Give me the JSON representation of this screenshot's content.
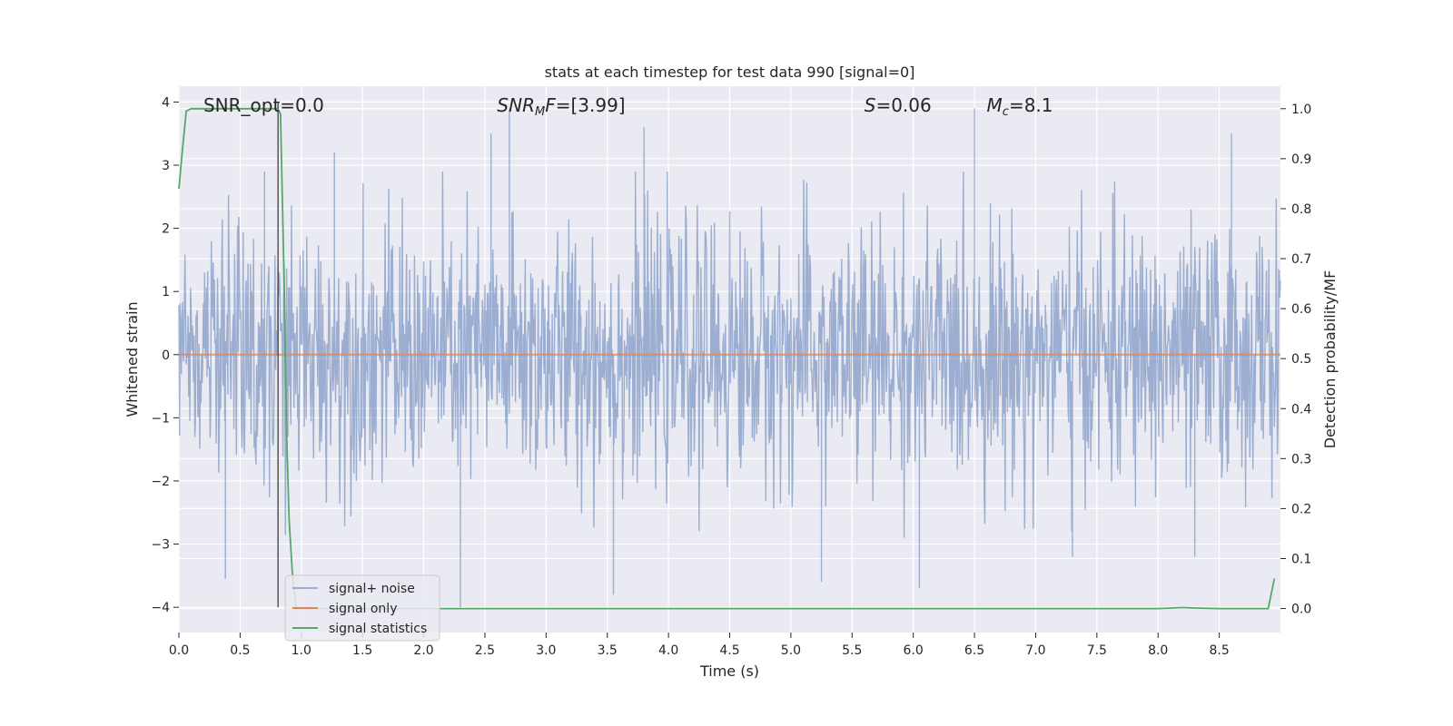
{
  "chart_data": {
    "type": "line",
    "title": "stats at each timestep for test data 990 [signal=0]",
    "xlabel": "Time (s)",
    "ylabel": "Whitened strain",
    "y2label": "Detection probability/MF",
    "xlim": [
      0.0,
      9.0
    ],
    "ylim": [
      -4.4,
      4.25
    ],
    "y2lim": [
      -0.048,
      1.045
    ],
    "x_ticks": [
      "0.0",
      "0.5",
      "1.0",
      "1.5",
      "2.0",
      "2.5",
      "3.0",
      "3.5",
      "4.0",
      "4.5",
      "5.0",
      "5.5",
      "6.0",
      "6.5",
      "7.0",
      "7.5",
      "8.0",
      "8.5"
    ],
    "y_ticks": [
      "4",
      "3",
      "2",
      "1",
      "0",
      "−1",
      "−2",
      "−3",
      "−4"
    ],
    "y2_ticks": [
      "1.0",
      "0.9",
      "0.8",
      "0.7",
      "0.6",
      "0.5",
      "0.4",
      "0.3",
      "0.2",
      "0.1",
      "0.0"
    ],
    "annotations": [
      {
        "text": "SNR_opt=0.0",
        "x": 0.2,
        "y": 3.95
      },
      {
        "text": "SNR_MF=[3.99]",
        "x": 2.6,
        "y": 3.95
      },
      {
        "text": "S=0.06",
        "x": 5.6,
        "y": 3.95
      },
      {
        "text": "M_c=8.1",
        "x": 6.6,
        "y": 3.95
      }
    ],
    "vline_x": 0.81,
    "series": [
      {
        "name": "signal+ noise",
        "color": "#4c72b0",
        "axis": "left",
        "style": "whitened noise, roughly Gaussian, spans about −4.0 to 4.0",
        "x_range": [
          0.0,
          9.0
        ],
        "envelope": [
          -2.5,
          2.5
        ],
        "peaks_high": [
          [
            0.7,
            2.9
          ],
          [
            1.27,
            3.2
          ],
          [
            2.55,
            3.5
          ],
          [
            2.7,
            3.9
          ],
          [
            3.8,
            3.6
          ],
          [
            6.5,
            3.9
          ],
          [
            8.6,
            3.5
          ]
        ],
        "peaks_low": [
          [
            0.38,
            -3.55
          ],
          [
            2.3,
            -4.0
          ],
          [
            3.55,
            -3.8
          ],
          [
            5.25,
            -3.6
          ],
          [
            6.05,
            -3.7
          ],
          [
            7.3,
            -3.2
          ],
          [
            8.3,
            -3.2
          ]
        ]
      },
      {
        "name": "signal only",
        "color": "#dd8452",
        "axis": "left",
        "x": [
          0.0,
          9.0
        ],
        "values": [
          0.0,
          0.0
        ]
      },
      {
        "name": "signal statistics",
        "color": "#55a868",
        "axis": "right",
        "x": [
          0.0,
          0.03,
          0.06,
          0.1,
          0.2,
          0.3,
          0.4,
          0.5,
          0.6,
          0.7,
          0.8,
          0.83,
          0.86,
          0.88,
          0.9,
          0.93,
          0.96,
          1.0,
          1.5,
          2.0,
          3.0,
          4.0,
          5.0,
          6.0,
          7.0,
          8.0,
          8.2,
          8.3,
          8.5,
          8.9,
          8.95
        ],
        "values": [
          0.84,
          0.92,
          0.995,
          1.0,
          1.0,
          1.0,
          1.0,
          1.0,
          1.0,
          1.0,
          1.0,
          0.99,
          0.65,
          0.35,
          0.18,
          0.06,
          0.0,
          0.0,
          0.0,
          0.0,
          0.0,
          0.0,
          0.0,
          0.0,
          0.0,
          0.0,
          0.002,
          0.001,
          0.0,
          0.0,
          0.06
        ]
      }
    ],
    "legend": {
      "placement": "lower-left",
      "entries": [
        "signal+ noise",
        "signal only",
        "signal statistics"
      ]
    },
    "grid": true,
    "background": "#eaeaf2"
  }
}
